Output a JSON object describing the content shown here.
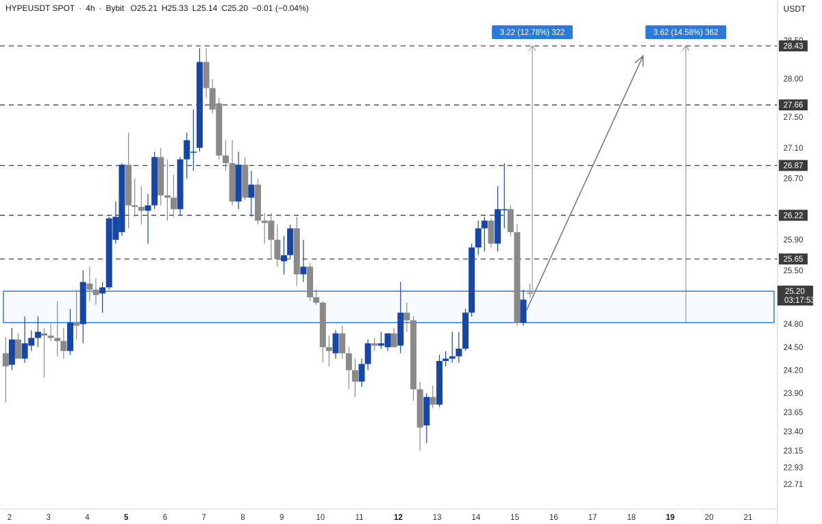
{
  "header": {
    "symbol": "HYPEUSDT SPOT",
    "sep1": "·",
    "interval": "4h",
    "sep2": "·",
    "exchange": "Bybit",
    "open": "O25.21",
    "high": "H25.33",
    "low": "L25.14",
    "close": "C25.20",
    "change": "−0.01 (−0.04%)"
  },
  "price_axis": {
    "currency": "USDT",
    "ticks": [
      "28.50",
      "28.00",
      "27.50",
      "27.10",
      "26.70",
      "26.20",
      "25.90",
      "25.50",
      "24.80",
      "24.50",
      "24.20",
      "23.90",
      "23.65",
      "23.40",
      "23.15",
      "22.93",
      "22.71"
    ],
    "current_price": "25.20",
    "countdown": "03:17:53"
  },
  "time_axis": {
    "labels": [
      "2",
      "3",
      "4",
      "5",
      "6",
      "7",
      "8",
      "9",
      "10",
      "11",
      "12",
      "13",
      "14",
      "15",
      "16",
      "17",
      "18",
      "19",
      "20",
      "21"
    ],
    "bold": [
      "5",
      "12",
      "19"
    ]
  },
  "levels": [
    {
      "price": 28.43,
      "label": "28.43"
    },
    {
      "price": 27.66,
      "label": "27.66"
    },
    {
      "price": 26.87,
      "label": "26.87"
    },
    {
      "price": 26.22,
      "label": "26.22"
    },
    {
      "price": 25.65,
      "label": "25.65"
    }
  ],
  "zone": {
    "top": 25.23,
    "bottom": 24.82,
    "color": "#2a7ade"
  },
  "measurements": [
    {
      "label": "3.22 (12.78%) 322",
      "from": 25.2,
      "to": 28.43,
      "day": 15.45
    },
    {
      "label": "3.62 (14.58%) 362",
      "from": 24.82,
      "to": 28.43,
      "day": 19.4
    }
  ],
  "projection_arrow": {
    "from": {
      "day": 15.3,
      "price": 24.98
    },
    "to": {
      "day": 18.3,
      "price": 28.3
    }
  },
  "colors": {
    "up": "#1747a6",
    "down": "#8a8a8a",
    "accent": "#2a7ade",
    "label_bg": "#3c3c3c",
    "grid_dash": "#444444"
  },
  "chart_data": {
    "type": "candlestick",
    "title": "",
    "ylabel": "USDT",
    "ylim": [
      22.65,
      28.72
    ],
    "x_domain": [
      1.9,
      21.6
    ],
    "candles": [
      {
        "t": 1.9,
        "o": 24.42,
        "h": 24.63,
        "l": 23.78,
        "c": 24.25
      },
      {
        "t": 2.06,
        "o": 24.27,
        "h": 24.75,
        "l": 24.2,
        "c": 24.6
      },
      {
        "t": 2.22,
        "o": 24.6,
        "h": 24.68,
        "l": 24.35,
        "c": 24.35
      },
      {
        "t": 2.39,
        "o": 24.35,
        "h": 24.9,
        "l": 24.3,
        "c": 24.55
      },
      {
        "t": 2.56,
        "o": 24.52,
        "h": 24.72,
        "l": 24.45,
        "c": 24.62
      },
      {
        "t": 2.73,
        "o": 24.62,
        "h": 24.9,
        "l": 24.5,
        "c": 24.7
      },
      {
        "t": 2.89,
        "o": 24.68,
        "h": 24.75,
        "l": 24.1,
        "c": 24.65
      },
      {
        "t": 3.06,
        "o": 24.65,
        "h": 24.8,
        "l": 24.58,
        "c": 24.62
      },
      {
        "t": 3.23,
        "o": 24.62,
        "h": 25.1,
        "l": 24.38,
        "c": 24.58
      },
      {
        "t": 3.39,
        "o": 24.58,
        "h": 24.75,
        "l": 24.35,
        "c": 24.45
      },
      {
        "t": 3.56,
        "o": 24.45,
        "h": 25.0,
        "l": 24.4,
        "c": 24.82
      },
      {
        "t": 3.72,
        "o": 24.82,
        "h": 25.25,
        "l": 24.6,
        "c": 24.78
      },
      {
        "t": 3.89,
        "o": 24.8,
        "h": 25.5,
        "l": 24.55,
        "c": 25.35
      },
      {
        "t": 4.06,
        "o": 25.33,
        "h": 25.55,
        "l": 25.1,
        "c": 25.25
      },
      {
        "t": 4.22,
        "o": 25.25,
        "h": 25.4,
        "l": 25.05,
        "c": 25.18
      },
      {
        "t": 4.39,
        "o": 25.2,
        "h": 25.35,
        "l": 24.95,
        "c": 25.28
      },
      {
        "t": 4.56,
        "o": 25.28,
        "h": 26.2,
        "l": 25.25,
        "c": 26.18
      },
      {
        "t": 4.73,
        "o": 25.9,
        "h": 26.4,
        "l": 25.85,
        "c": 26.2
      },
      {
        "t": 4.89,
        "o": 26.0,
        "h": 26.9,
        "l": 25.95,
        "c": 26.88
      },
      {
        "t": 5.06,
        "o": 26.88,
        "h": 27.3,
        "l": 26.05,
        "c": 26.35
      },
      {
        "t": 5.22,
        "o": 26.35,
        "h": 26.7,
        "l": 26.2,
        "c": 26.33
      },
      {
        "t": 5.39,
        "o": 26.33,
        "h": 26.6,
        "l": 26.1,
        "c": 26.28
      },
      {
        "t": 5.56,
        "o": 26.28,
        "h": 26.5,
        "l": 25.85,
        "c": 26.35
      },
      {
        "t": 5.73,
        "o": 26.35,
        "h": 27.05,
        "l": 26.3,
        "c": 26.98
      },
      {
        "t": 5.89,
        "o": 26.98,
        "h": 27.1,
        "l": 26.35,
        "c": 26.48
      },
      {
        "t": 6.06,
        "o": 26.48,
        "h": 26.95,
        "l": 26.15,
        "c": 26.45
      },
      {
        "t": 6.22,
        "o": 26.45,
        "h": 26.75,
        "l": 26.2,
        "c": 26.3
      },
      {
        "t": 6.39,
        "o": 26.3,
        "h": 26.98,
        "l": 26.22,
        "c": 26.95
      },
      {
        "t": 6.56,
        "o": 26.95,
        "h": 27.3,
        "l": 26.7,
        "c": 27.2
      },
      {
        "t": 6.73,
        "o": 27.05,
        "h": 27.6,
        "l": 26.8,
        "c": 27.05
      },
      {
        "t": 6.89,
        "o": 27.1,
        "h": 28.4,
        "l": 27.05,
        "c": 28.22
      },
      {
        "t": 7.06,
        "o": 28.22,
        "h": 28.4,
        "l": 27.75,
        "c": 27.88
      },
      {
        "t": 7.22,
        "o": 27.88,
        "h": 28.0,
        "l": 27.55,
        "c": 27.6
      },
      {
        "t": 7.39,
        "o": 27.68,
        "h": 27.75,
        "l": 26.95,
        "c": 27.0
      },
      {
        "t": 7.56,
        "o": 27.0,
        "h": 27.2,
        "l": 26.8,
        "c": 26.9
      },
      {
        "t": 7.73,
        "o": 26.9,
        "h": 27.2,
        "l": 26.35,
        "c": 26.4
      },
      {
        "t": 7.89,
        "o": 26.4,
        "h": 27.05,
        "l": 26.3,
        "c": 26.88
      },
      {
        "t": 8.06,
        "o": 26.88,
        "h": 26.98,
        "l": 26.42,
        "c": 26.45
      },
      {
        "t": 8.22,
        "o": 26.45,
        "h": 26.8,
        "l": 26.2,
        "c": 26.62
      },
      {
        "t": 8.39,
        "o": 26.62,
        "h": 26.7,
        "l": 26.1,
        "c": 26.15
      },
      {
        "t": 8.56,
        "o": 26.15,
        "h": 26.25,
        "l": 25.85,
        "c": 26.12
      },
      {
        "t": 8.73,
        "o": 26.15,
        "h": 26.25,
        "l": 25.65,
        "c": 25.9
      },
      {
        "t": 8.89,
        "o": 25.9,
        "h": 26.1,
        "l": 25.55,
        "c": 25.65
      },
      {
        "t": 9.06,
        "o": 25.62,
        "h": 25.95,
        "l": 25.45,
        "c": 25.7
      },
      {
        "t": 9.22,
        "o": 25.7,
        "h": 26.1,
        "l": 25.65,
        "c": 26.05
      },
      {
        "t": 9.39,
        "o": 26.05,
        "h": 26.2,
        "l": 25.3,
        "c": 25.45
      },
      {
        "t": 9.56,
        "o": 25.45,
        "h": 25.9,
        "l": 25.35,
        "c": 25.55
      },
      {
        "t": 9.73,
        "o": 25.55,
        "h": 25.6,
        "l": 25.1,
        "c": 25.15
      },
      {
        "t": 9.89,
        "o": 25.15,
        "h": 25.25,
        "l": 25.05,
        "c": 25.08
      },
      {
        "t": 10.06,
        "o": 25.08,
        "h": 25.1,
        "l": 24.3,
        "c": 24.5
      },
      {
        "t": 10.22,
        "o": 24.5,
        "h": 24.65,
        "l": 24.25,
        "c": 24.45
      },
      {
        "t": 10.39,
        "o": 24.42,
        "h": 24.72,
        "l": 24.35,
        "c": 24.68
      },
      {
        "t": 10.56,
        "o": 24.68,
        "h": 24.78,
        "l": 24.35,
        "c": 24.42
      },
      {
        "t": 10.73,
        "o": 24.42,
        "h": 24.5,
        "l": 23.95,
        "c": 24.2
      },
      {
        "t": 10.89,
        "o": 24.2,
        "h": 24.35,
        "l": 23.85,
        "c": 24.05
      },
      {
        "t": 11.06,
        "o": 24.05,
        "h": 24.35,
        "l": 23.98,
        "c": 24.28
      },
      {
        "t": 11.22,
        "o": 24.28,
        "h": 24.6,
        "l": 24.2,
        "c": 24.55
      },
      {
        "t": 11.39,
        "o": 24.55,
        "h": 24.62,
        "l": 24.45,
        "c": 24.52
      },
      {
        "t": 11.56,
        "o": 24.52,
        "h": 24.7,
        "l": 24.48,
        "c": 24.55
      },
      {
        "t": 11.73,
        "o": 24.5,
        "h": 24.68,
        "l": 24.45,
        "c": 24.68
      },
      {
        "t": 11.89,
        "o": 24.68,
        "h": 24.75,
        "l": 24.5,
        "c": 24.5
      },
      {
        "t": 12.06,
        "o": 24.52,
        "h": 25.35,
        "l": 24.42,
        "c": 24.95
      },
      {
        "t": 12.22,
        "o": 24.95,
        "h": 25.08,
        "l": 24.7,
        "c": 24.85
      },
      {
        "t": 12.39,
        "o": 24.85,
        "h": 24.9,
        "l": 23.8,
        "c": 23.95
      },
      {
        "t": 12.56,
        "o": 23.95,
        "h": 24.05,
        "l": 23.15,
        "c": 23.45
      },
      {
        "t": 12.73,
        "o": 23.48,
        "h": 23.9,
        "l": 23.25,
        "c": 23.85
      },
      {
        "t": 12.89,
        "o": 23.85,
        "h": 24.0,
        "l": 23.7,
        "c": 23.75
      },
      {
        "t": 13.06,
        "o": 23.75,
        "h": 24.4,
        "l": 23.72,
        "c": 24.32
      },
      {
        "t": 13.22,
        "o": 24.32,
        "h": 24.45,
        "l": 24.25,
        "c": 24.35
      },
      {
        "t": 13.39,
        "o": 24.35,
        "h": 24.7,
        "l": 24.3,
        "c": 24.38
      },
      {
        "t": 13.56,
        "o": 24.38,
        "h": 24.7,
        "l": 24.3,
        "c": 24.48
      },
      {
        "t": 13.73,
        "o": 24.48,
        "h": 25.0,
        "l": 24.45,
        "c": 24.95
      },
      {
        "t": 13.89,
        "o": 24.95,
        "h": 25.85,
        "l": 24.9,
        "c": 25.8
      },
      {
        "t": 14.06,
        "o": 25.8,
        "h": 26.15,
        "l": 25.7,
        "c": 26.05
      },
      {
        "t": 14.22,
        "o": 26.05,
        "h": 26.2,
        "l": 25.75,
        "c": 26.15
      },
      {
        "t": 14.39,
        "o": 26.15,
        "h": 26.18,
        "l": 25.8,
        "c": 25.85
      },
      {
        "t": 14.56,
        "o": 25.85,
        "h": 26.6,
        "l": 25.75,
        "c": 26.3
      },
      {
        "t": 14.73,
        "o": 26.3,
        "h": 26.9,
        "l": 26.05,
        "c": 26.3
      },
      {
        "t": 14.89,
        "o": 26.3,
        "h": 26.35,
        "l": 25.95,
        "c": 26.0
      },
      {
        "t": 15.06,
        "o": 26.0,
        "h": 26.1,
        "l": 24.78,
        "c": 24.82
      },
      {
        "t": 15.22,
        "o": 24.82,
        "h": 25.25,
        "l": 24.78,
        "c": 25.12
      },
      {
        "t": 15.39,
        "o": 25.21,
        "h": 25.33,
        "l": 25.14,
        "c": 25.2
      }
    ]
  }
}
